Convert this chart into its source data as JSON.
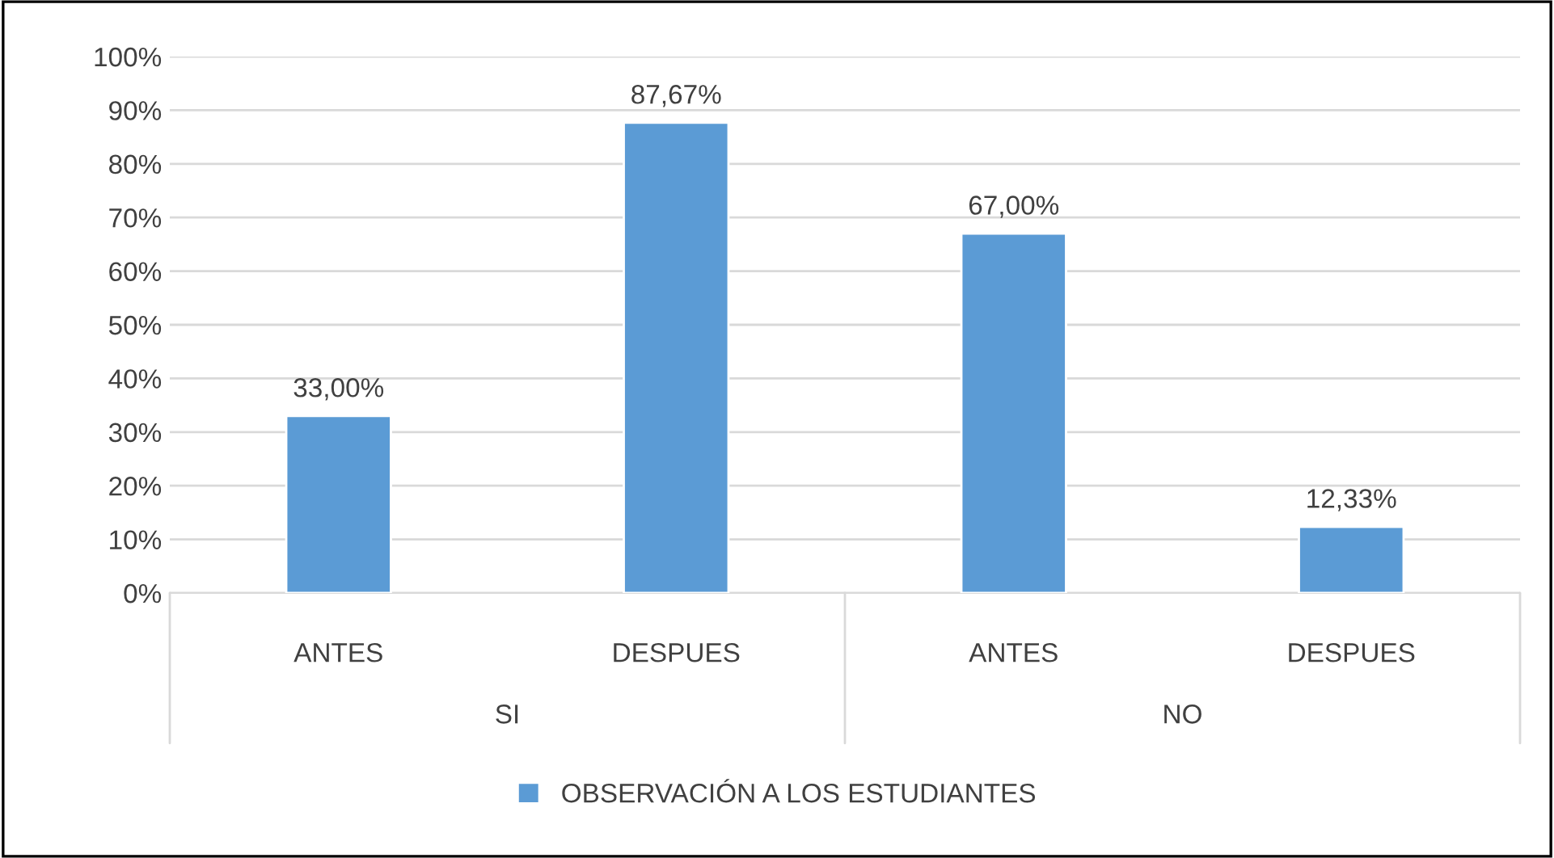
{
  "chart_data": {
    "type": "bar",
    "categories": [
      "ANTES",
      "DESPUES",
      "ANTES",
      "DESPUES"
    ],
    "series": [
      {
        "name": "OBSERVACIÓN A LOS ESTUDIANTES",
        "color": "#5b9bd5",
        "values": [
          33.0,
          87.67,
          67.0,
          12.33
        ],
        "value_labels": [
          "33,00%",
          "87,67%",
          "67,00%",
          "12,33%"
        ]
      }
    ],
    "annotations": [
      "SI",
      "NO"
    ],
    "ylim": [
      0,
      100
    ],
    "yticks": [
      {
        "value": 0,
        "label": "0%"
      },
      {
        "value": 10,
        "label": "10%"
      },
      {
        "value": 20,
        "label": "20%"
      },
      {
        "value": 30,
        "label": "30%"
      },
      {
        "value": 40,
        "label": "40%"
      },
      {
        "value": 50,
        "label": "50%"
      },
      {
        "value": 60,
        "label": "60%"
      },
      {
        "value": 70,
        "label": "70%"
      },
      {
        "value": 80,
        "label": "80%"
      },
      {
        "value": 90,
        "label": "90%"
      },
      {
        "value": 100,
        "label": "100%"
      }
    ],
    "grid": "y",
    "legend": "bottom"
  }
}
